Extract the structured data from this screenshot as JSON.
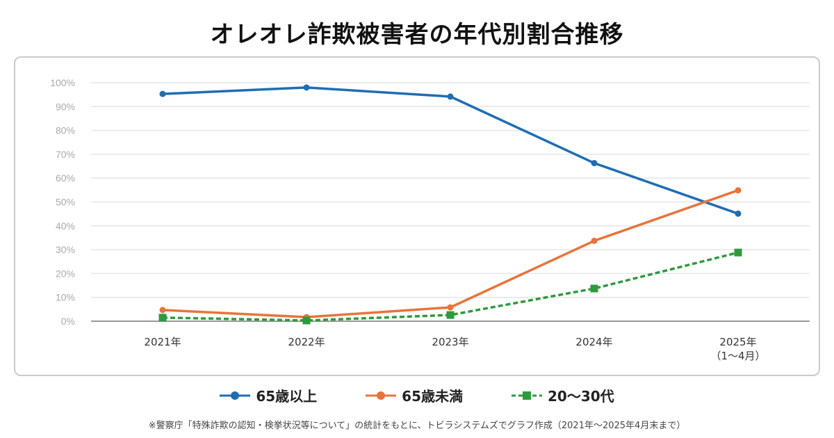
{
  "chart_data": {
    "type": "line",
    "title": "オレオレ詐欺被害者の年代別割合推移",
    "categories": [
      "2021年",
      "2022年",
      "2023年",
      "2024年",
      "2025年\n（1〜4月）"
    ],
    "yticks": [
      "0%",
      "10%",
      "20%",
      "30%",
      "40%",
      "50%",
      "60%",
      "70%",
      "80%",
      "90%",
      "100%"
    ],
    "ylim": [
      0,
      100
    ],
    "grid": true,
    "legend": "bottom",
    "series": [
      {
        "name": "65歳以上",
        "values": [
          95.3,
          98.0,
          94.2,
          66.3,
          45.1
        ],
        "color": "#1f6db3",
        "marker": "circle",
        "dash": false
      },
      {
        "name": "65歳未満",
        "values": [
          4.7,
          1.7,
          5.8,
          33.7,
          54.9
        ],
        "color": "#e8743b",
        "marker": "circle",
        "dash": false
      },
      {
        "name": "20〜30代",
        "values": [
          1.5,
          0.3,
          2.6,
          13.7,
          28.8
        ],
        "color": "#2e9a3e",
        "marker": "square",
        "dash": true
      }
    ],
    "footnote": "※警察庁「特殊詐欺の認知・検挙状況等について」の統計をもとに、トビラシステムズでグラフ作成（2021年〜2025年4月末まで）"
  }
}
